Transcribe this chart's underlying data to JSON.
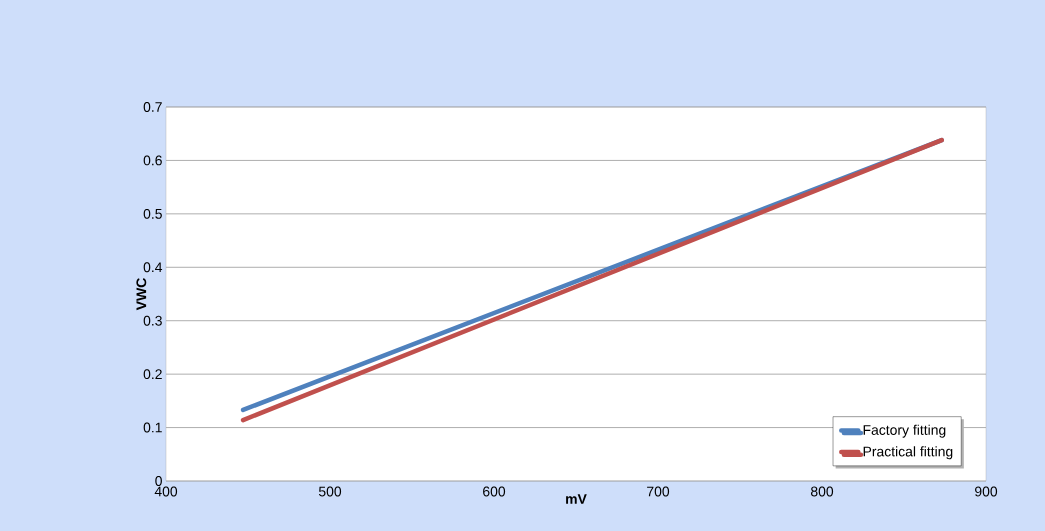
{
  "chart_data": {
    "type": "line",
    "xlabel": "mV",
    "ylabel": "VWC",
    "x": [
      447,
      873
    ],
    "series": [
      {
        "name": "Factory fitting",
        "color": "#4f81bd",
        "values": [
          0.133,
          0.638
        ]
      },
      {
        "name": "Practical fitting",
        "color": "#c0504d",
        "values": [
          0.114,
          0.638
        ]
      }
    ],
    "xlim": [
      400,
      900
    ],
    "xticks": [
      400,
      500,
      600,
      700,
      800,
      900
    ],
    "ylim": [
      0,
      0.7
    ],
    "yticks": [
      0,
      0.1,
      0.2,
      0.3,
      0.4,
      0.5,
      0.6,
      0.7
    ],
    "grid": "y",
    "legend": "bottom right",
    "marker": "none",
    "line_style": "solid"
  }
}
